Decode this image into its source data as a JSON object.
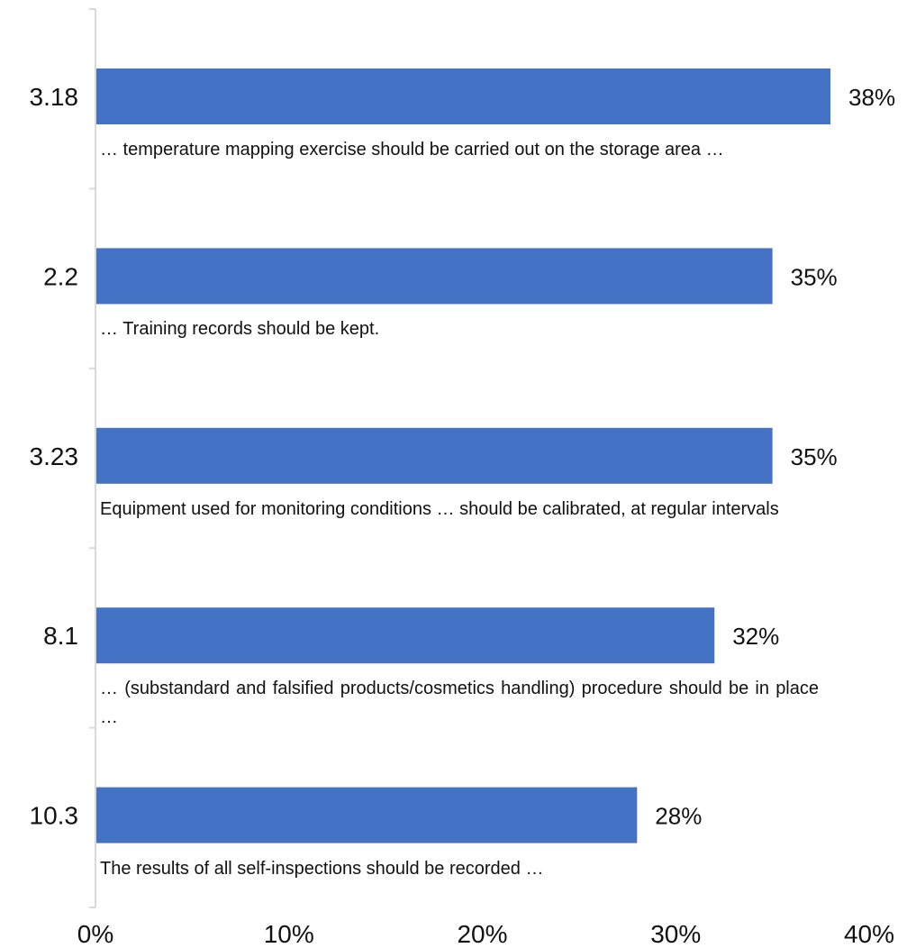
{
  "chart_data": {
    "type": "bar",
    "orientation": "horizontal",
    "categories": [
      "3.18",
      "2.2",
      "3.23",
      "8.1",
      "10.3"
    ],
    "values": [
      38,
      35,
      35,
      32,
      28
    ],
    "data_labels": [
      "38%",
      "35%",
      "35%",
      "32%",
      "28%"
    ],
    "descriptions": [
      "… temperature mapping exercise should be carried out on the storage area …",
      "… Training records should be kept.",
      "Equipment used for monitoring conditions … should be calibrated, at regular intervals",
      "… (substandard and falsified products/cosmetics handling) procedure should be in place …",
      "The results of all self-inspections should be recorded …"
    ],
    "x_ticks": [
      "0%",
      "10%",
      "20%",
      "30%",
      "40%"
    ],
    "xlim": [
      0,
      40
    ],
    "grid": false,
    "legend": "none",
    "bar_color": "#4472C4",
    "axis_color": "#D9D9D9"
  }
}
